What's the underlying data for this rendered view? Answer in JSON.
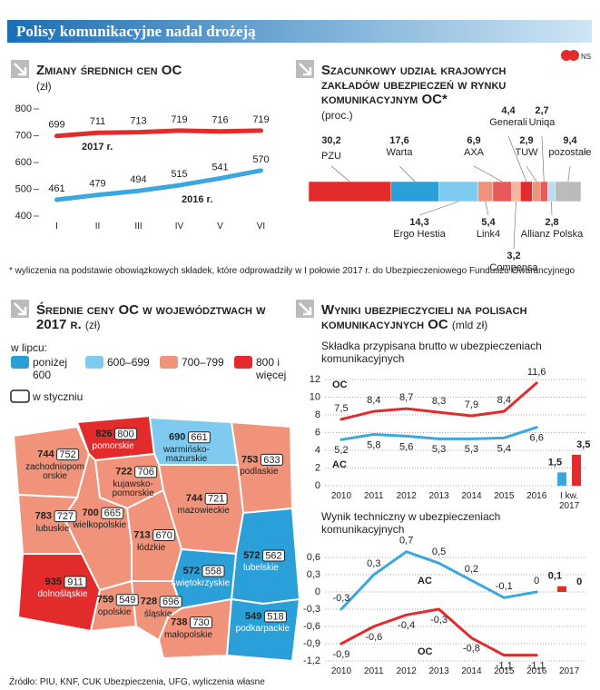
{
  "title": "Polisy komunikacyjne nadal drożeją",
  "logo": "NS",
  "footnote": "* wyliczenia na podstawie obowiązkowych składek, które odprowadziły w I połowie 2017 r. do Ubezpieczeniowego Funduszu Gwarancyjnego",
  "source": "Źródło: PIU, KNF, CUK Ubezpieczenia, UFG, wyliczenia własne",
  "chart_data": [
    {
      "type": "line",
      "title": "Zmiany średnich cen OC",
      "subtitle": "(zł)",
      "categories": [
        "I",
        "II",
        "III",
        "IV",
        "V",
        "VI"
      ],
      "series": [
        {
          "name": "2017 r.",
          "color": "#e32b2b",
          "values": [
            699,
            711,
            713,
            719,
            716,
            719
          ]
        },
        {
          "name": "2016 r.",
          "color": "#3aa8de",
          "values": [
            461,
            479,
            494,
            515,
            541,
            570
          ]
        }
      ],
      "ylim": [
        400,
        800
      ],
      "yticks": [
        400,
        500,
        600,
        700,
        800
      ]
    },
    {
      "type": "stacked-bar",
      "title": "Szacunkowy udział krajowych zakładów ubezpieczeń w rynku komunikacyjnym OC*",
      "subtitle": "(proc.)",
      "categories": [
        "PZU",
        "Warta",
        "Ergo Hestia",
        "Link4",
        "AXA",
        "Compensa",
        "Generali",
        "TUW",
        "Uniqa",
        "Allianz Polska",
        "pozostałe"
      ],
      "values": [
        30.2,
        17.6,
        14.3,
        5.4,
        6.9,
        3.2,
        4.4,
        2.9,
        2.7,
        2.8,
        9.4
      ],
      "value_labels": [
        "30,2",
        "17,6",
        "14,3",
        "5,4",
        "6,9",
        "3,2",
        "4,4",
        "2,9",
        "2,7",
        "2,8",
        "9,4"
      ],
      "colors": [
        "#e32b2b",
        "#2a9fd8",
        "#7ecbef",
        "#f0937a",
        "#e85a5a",
        "#f6b6a4",
        "#e32b2b",
        "#f0937a",
        "#e85a5a",
        "#bcdcee",
        "#bbbbbb"
      ]
    },
    {
      "type": "map",
      "title": "Średnie ceny OC w województwach w 2017 r.",
      "subtitle": "(zł)",
      "legend_title": "w lipcu:",
      "legend": [
        {
          "label": "poniżej 600",
          "color": "#2a9fd8"
        },
        {
          "label": "600–699",
          "color": "#7ecbef"
        },
        {
          "label": "700–799",
          "color": "#f0937a"
        },
        {
          "label": "800 i więcej",
          "color": "#e32b2b"
        }
      ],
      "legend_january": "w styczniu",
      "regions": [
        {
          "name": "zachodniopomorskie",
          "value": 744,
          "january": 752,
          "color": "#f0937a"
        },
        {
          "name": "pomorskie",
          "value": 826,
          "january": 800,
          "color": "#e32b2b"
        },
        {
          "name": "warmińsko-mazurskie",
          "value": 690,
          "january": 661,
          "color": "#7ecbef"
        },
        {
          "name": "podlaskie",
          "value": 753,
          "january": 633,
          "color": "#f0937a"
        },
        {
          "name": "kujawsko-pomorskie",
          "value": 722,
          "january": 706,
          "color": "#f0937a"
        },
        {
          "name": "mazowieckie",
          "value": 744,
          "january": 721,
          "color": "#f0937a"
        },
        {
          "name": "wielkopolskie",
          "value": 700,
          "january": 665,
          "color": "#f0937a"
        },
        {
          "name": "lubuskie",
          "value": 783,
          "january": 727,
          "color": "#f0937a"
        },
        {
          "name": "łódzkie",
          "value": 713,
          "january": 670,
          "color": "#f0937a"
        },
        {
          "name": "lubelskie",
          "value": 572,
          "january": 562,
          "color": "#2a9fd8"
        },
        {
          "name": "dolnośląskie",
          "value": 935,
          "january": 911,
          "color": "#e32b2b"
        },
        {
          "name": "opolskie",
          "value": 759,
          "january": 549,
          "color": "#f0937a"
        },
        {
          "name": "śląskie",
          "value": 728,
          "january": 696,
          "color": "#f0937a"
        },
        {
          "name": "świętokrzyskie",
          "value": 572,
          "january": 558,
          "color": "#2a9fd8"
        },
        {
          "name": "małopolskie",
          "value": 738,
          "january": 730,
          "color": "#f0937a"
        },
        {
          "name": "podkarpackie",
          "value": 549,
          "january": 518,
          "color": "#2a9fd8"
        }
      ]
    },
    {
      "type": "line",
      "title": "Wyniki ubezpieczycieli na polisach komunikacyjnych OC",
      "subtitle": "(mld zł)",
      "chart_subtitle": "Składka przypisana brutto w ubezpieczeniach komunikacyjnych",
      "categories": [
        "2010",
        "2011",
        "2012",
        "2013",
        "2014",
        "2015",
        "2016",
        "I kw. 2017"
      ],
      "series": [
        {
          "name": "OC",
          "color": "#e32b2b",
          "values": [
            7.5,
            8.4,
            8.7,
            8.3,
            7.9,
            8.4,
            11.6,
            3.5
          ],
          "value_labels": [
            "7,5",
            "8,4",
            "8,7",
            "8,3",
            "7,9",
            "8,4",
            "11,6",
            "3,5"
          ]
        },
        {
          "name": "AC",
          "color": "#3aa8de",
          "values": [
            5.2,
            5.8,
            5.6,
            5.3,
            5.3,
            5.4,
            6.6,
            1.5
          ],
          "value_labels": [
            "5,2",
            "5,8",
            "5,6",
            "5,3",
            "5,3",
            "5,4",
            "6,6",
            "1,5"
          ]
        }
      ],
      "last_as_bar": true,
      "grid": true,
      "ylim": [
        0,
        12
      ],
      "yticks": [
        0,
        2,
        4,
        6,
        8,
        10,
        12
      ]
    },
    {
      "type": "line",
      "chart_subtitle": "Wynik techniczny w ubezpieczeniach komunikacyjnych",
      "categories": [
        "2010",
        "2011",
        "2012",
        "2013",
        "2014",
        "2015",
        "2016",
        "2017"
      ],
      "series": [
        {
          "name": "AC",
          "color": "#3aa8de",
          "values": [
            -0.3,
            0.3,
            0.7,
            0.5,
            0.2,
            -0.1,
            0,
            0
          ],
          "value_labels": [
            "-0,3",
            "0,3",
            "0,7",
            "0,5",
            "0,2",
            "-0,1",
            "0",
            "0"
          ]
        },
        {
          "name": "OC",
          "color": "#e32b2b",
          "values": [
            -0.9,
            -0.6,
            -0.4,
            -0.3,
            -0.8,
            -1.1,
            -1.1,
            0.1
          ],
          "value_labels": [
            "-0,9",
            "-0,6",
            "-0,4",
            "-0,3",
            "-0,8",
            "-1,1",
            "-1,1",
            "0,1"
          ]
        }
      ],
      "last_as_bar": true,
      "grid": true,
      "ylim": [
        -1.2,
        0.6
      ],
      "yticks": [
        {
          "value": -1.2,
          "label": "-1,2"
        },
        {
          "value": -0.9,
          "label": "-0,9"
        },
        {
          "value": -0.6,
          "label": "-0,6"
        },
        {
          "value": -0.3,
          "label": "-0,3"
        },
        0,
        {
          "value": 0.3,
          "label": "0,3"
        },
        {
          "value": 0.6,
          "label": "0,6"
        }
      ]
    }
  ]
}
